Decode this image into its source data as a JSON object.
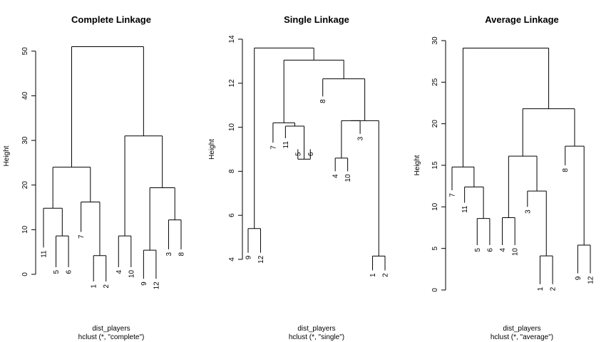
{
  "chart_data": [
    {
      "type": "dendrogram",
      "title": "Complete Linkage",
      "ylabel": "Height",
      "xlabel": "dist_players",
      "sublabel": "hclust (*, \"complete\")",
      "ylim": [
        0,
        53
      ],
      "yticks": [
        0,
        10,
        20,
        30,
        40,
        50
      ],
      "order": [
        "11",
        "5",
        "6",
        "7",
        "1",
        "2",
        "4",
        "10",
        "9",
        "12",
        "3",
        "8"
      ],
      "leaf_heights": [
        6.0,
        1.6,
        1.6,
        9.5,
        -1.6,
        -1.6,
        1.6,
        1.6,
        -1.0,
        -1.0,
        5.6,
        5.6
      ],
      "merges": [
        [
          -2,
          -3,
          8.6
        ],
        [
          -5,
          -6,
          4.2
        ],
        [
          -7,
          -8,
          8.6
        ],
        [
          -9,
          -10,
          5.4
        ],
        [
          -11,
          -12,
          12.2
        ],
        [
          -1,
          1,
          14.8
        ],
        [
          -4,
          2,
          16.2
        ],
        [
          4,
          5,
          19.4
        ],
        [
          6,
          7,
          24.0
        ],
        [
          3,
          8,
          31.0
        ],
        [
          9,
          10,
          51.0
        ]
      ]
    },
    {
      "type": "dendrogram",
      "title": "Single Linkage",
      "ylabel": "Height",
      "xlabel": "dist_players",
      "sublabel": "hclust (*, \"single\")",
      "ylim": [
        4,
        14
      ],
      "yticks": [
        4,
        6,
        8,
        10,
        12,
        14
      ],
      "order": [
        "9",
        "12",
        "7",
        "11",
        "5",
        "6",
        "8",
        "4",
        "10",
        "3",
        "1",
        "2"
      ],
      "leaf_heights": [
        4.3,
        4.3,
        9.3,
        9.5,
        9.0,
        9.0,
        11.4,
        8.0,
        8.0,
        9.7,
        3.5,
        3.5
      ],
      "merges": [
        [
          -1,
          -2,
          5.4
        ],
        [
          -11,
          -12,
          4.15
        ],
        [
          -5,
          -6,
          8.55
        ],
        [
          -8,
          -9,
          8.6
        ],
        [
          -4,
          3,
          10.05
        ],
        [
          -3,
          5,
          10.2
        ],
        [
          4,
          -10,
          10.3
        ],
        [
          7,
          2,
          10.3
        ],
        [
          -7,
          8,
          12.2
        ],
        [
          6,
          9,
          13.05
        ],
        [
          1,
          10,
          13.6
        ]
      ]
    },
    {
      "type": "dendrogram",
      "title": "Average Linkage",
      "ylabel": "Height",
      "xlabel": "dist_players",
      "sublabel": "hclust (*, \"average\")",
      "ylim": [
        0,
        30
      ],
      "yticks": [
        0,
        5,
        10,
        15,
        20,
        25,
        30
      ],
      "order": [
        "7",
        "11",
        "5",
        "6",
        "4",
        "10",
        "3",
        "1",
        "2",
        "8",
        "9",
        "12"
      ],
      "leaf_heights": [
        12.0,
        10.5,
        5.4,
        5.4,
        5.4,
        5.4,
        10.0,
        0.7,
        0.7,
        15.0,
        2.0,
        2.0
      ],
      "merges": [
        [
          -3,
          -4,
          8.6
        ],
        [
          -5,
          -6,
          8.7
        ],
        [
          -8,
          -9,
          4.1
        ],
        [
          -11,
          -12,
          5.4
        ],
        [
          -2,
          1,
          12.4
        ],
        [
          -7,
          3,
          11.9
        ],
        [
          -1,
          5,
          14.8
        ],
        [
          2,
          6,
          16.1
        ],
        [
          -10,
          4,
          17.3
        ],
        [
          8,
          9,
          21.8
        ],
        [
          7,
          10,
          29.1
        ]
      ]
    }
  ]
}
